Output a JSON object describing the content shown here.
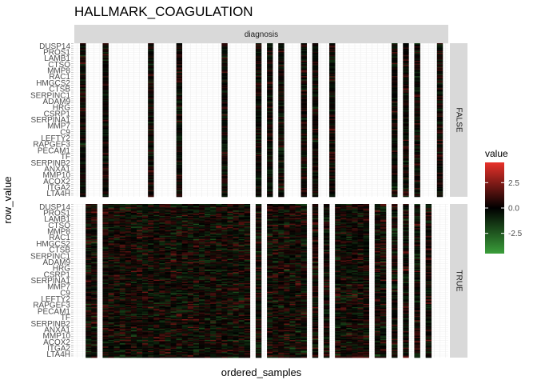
{
  "chart_data": {
    "type": "heatmap",
    "title": "HALLMARK_COAGULATION",
    "xlabel": "ordered_samples",
    "ylabel": "row_value",
    "column_facet_label": "diagnosis",
    "row_facets": [
      "FALSE",
      "TRUE"
    ],
    "row_tick_labels": [
      "DUSP14",
      "PROS1",
      "LAMB1",
      "CTSO",
      "MMP8",
      "RAC1",
      "HMGCS2",
      "CTSB",
      "SERPINC1",
      "ADAM9",
      "HRG",
      "CSRP1",
      "SERPINA1",
      "MMP7",
      "C9",
      "LEFTY2",
      "RAPGEF3",
      "PECAM1",
      "TF",
      "SERPINB2",
      "ANXA1",
      "MMP10",
      "ACOX2",
      "ITGA2",
      "LTA4H"
    ],
    "legend": {
      "title": "value",
      "ticks": [
        2.5,
        0.0,
        -2.5
      ],
      "scale_min": -4.5,
      "scale_max": 4.5,
      "colors": {
        "low": "#3a9e3a",
        "mid": "#000000",
        "high": "#e8312a"
      }
    },
    "grid": true,
    "n_rows_per_panel": 140,
    "false_panel_columns": [
      1,
      5,
      13,
      18,
      26,
      32,
      34,
      36,
      40,
      42,
      45,
      56,
      58,
      60,
      64
    ],
    "true_panel_column_groups": [
      [
        2,
        3
      ],
      [
        5,
        6,
        7,
        8,
        9,
        10,
        11,
        12
      ],
      [
        13,
        14
      ],
      [
        15,
        16,
        17,
        18
      ],
      [
        19,
        20,
        21,
        22,
        23,
        24,
        25,
        26,
        27
      ],
      [
        28,
        29
      ],
      [
        30
      ],
      [
        32
      ],
      [
        34,
        35,
        36,
        37,
        38,
        39
      ],
      [
        40
      ],
      [
        42
      ],
      [
        44
      ],
      [
        46,
        47,
        48,
        49,
        50,
        51
      ],
      [
        53,
        54
      ],
      [
        56
      ],
      [
        58
      ],
      [
        60
      ],
      [
        62
      ]
    ]
  },
  "colors": {
    "strip_background": "#d9d9d9",
    "panel_background": "#ffffff",
    "grid_line": "#ebebeb"
  }
}
